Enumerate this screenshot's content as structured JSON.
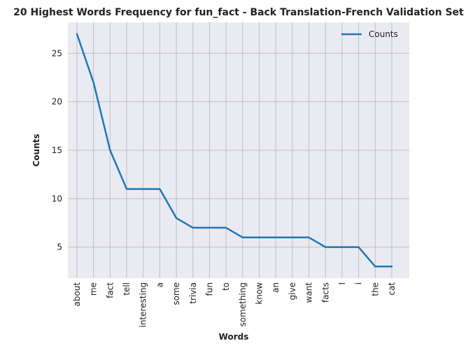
{
  "chart_data": {
    "type": "line",
    "title": "20 Highest Words Frequency for fun_fact - Back Translation-French Validation Set",
    "xlabel": "Words",
    "ylabel": "Counts",
    "categories": [
      "about",
      "me",
      "fact",
      "tell",
      "interesting",
      "a",
      "some",
      "trivia",
      "fun",
      "to",
      "something",
      "know",
      "an",
      "give",
      "want",
      "facts",
      "I",
      "i",
      "the",
      "cat"
    ],
    "series": [
      {
        "name": "Counts",
        "values": [
          27,
          22,
          15,
          11,
          11,
          11,
          8,
          7,
          7,
          7,
          6,
          6,
          6,
          6,
          6,
          5,
          5,
          5,
          3,
          3
        ],
        "color": "#1f77b4"
      }
    ],
    "ylim": [
      1.8,
      28.2
    ],
    "yticks": [
      5,
      10,
      15,
      20,
      25
    ],
    "grid": true,
    "legend_position": "top-right",
    "background_color": "#eaeaf2",
    "grid_color": "#c0c0c0"
  }
}
